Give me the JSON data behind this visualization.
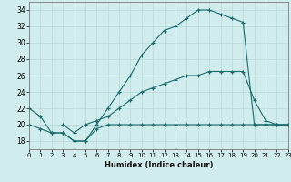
{
  "xlabel": "Humidex (Indice chaleur)",
  "bg_color": "#d0ecec",
  "grid_color": "#b8d8d8",
  "line_color": "#1a6b6b",
  "xlim": [
    0,
    23
  ],
  "ylim": [
    17,
    35
  ],
  "xticks": [
    0,
    1,
    2,
    3,
    4,
    5,
    6,
    7,
    8,
    9,
    10,
    11,
    12,
    13,
    14,
    15,
    16,
    17,
    18,
    19,
    20,
    21,
    22,
    23
  ],
  "yticks": [
    18,
    20,
    22,
    24,
    26,
    28,
    30,
    32,
    34
  ],
  "series1_x": [
    0,
    1,
    2,
    3,
    4,
    5,
    6,
    7,
    8,
    9,
    10,
    11,
    12,
    13,
    14,
    15,
    16,
    17,
    18,
    19,
    20,
    21,
    22,
    23
  ],
  "series1_y": [
    22,
    21,
    19,
    19,
    18,
    18,
    20,
    22,
    24,
    26,
    28.5,
    30,
    31.5,
    32,
    33,
    34,
    34,
    33.5,
    33,
    32.5,
    20,
    20,
    20,
    20
  ],
  "series2_x": [
    0,
    1,
    2,
    3,
    4,
    5,
    6,
    7,
    8,
    9,
    10,
    11,
    12,
    13,
    14,
    15,
    16,
    17,
    18,
    19,
    20,
    21,
    22,
    23
  ],
  "series2_y": [
    20,
    19.5,
    19,
    19,
    18,
    18,
    19.5,
    20,
    20,
    20,
    20,
    20,
    20,
    20,
    20,
    20,
    20,
    20,
    20,
    20,
    20,
    20,
    20,
    20
  ],
  "series3_x": [
    3,
    4,
    5,
    6,
    7,
    8,
    9,
    10,
    11,
    12,
    13,
    14,
    15,
    16,
    17,
    18,
    19,
    20,
    21,
    22,
    23
  ],
  "series3_y": [
    20,
    19,
    20,
    20.5,
    21,
    22,
    23,
    24,
    24.5,
    25,
    25.5,
    26,
    26,
    26.5,
    26.5,
    26.5,
    26.5,
    23,
    20.5,
    20,
    20
  ]
}
